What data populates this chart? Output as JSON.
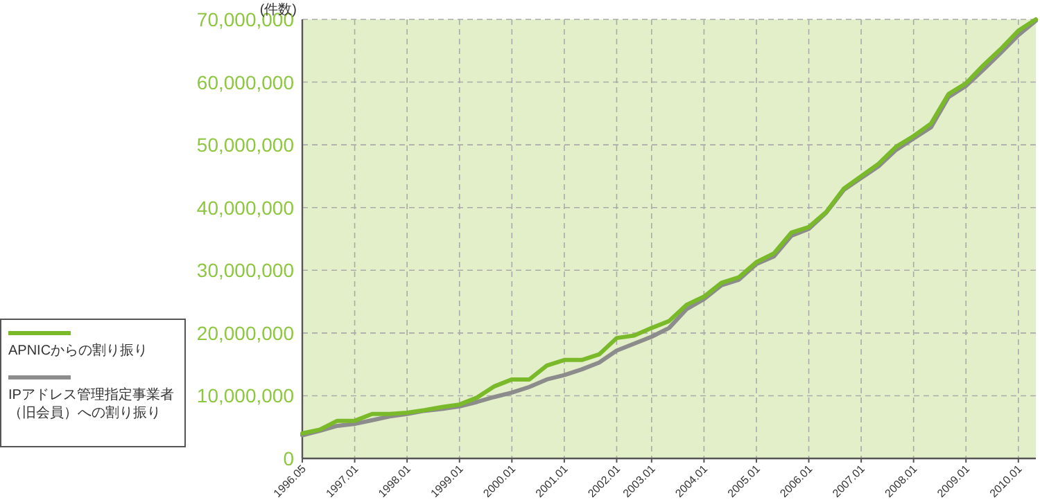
{
  "chart_data": {
    "type": "line",
    "ylabel": "(件数)",
    "categories": [
      "1996.05",
      null,
      null,
      "1997.01",
      null,
      null,
      "1998.01",
      null,
      null,
      "1999.01",
      null,
      null,
      "2000.01",
      null,
      null,
      "2001.01",
      null,
      null,
      "2002.01",
      null,
      "2003.01",
      null,
      null,
      "2004.01",
      null,
      null,
      "2005.01",
      null,
      null,
      "2006.01",
      null,
      null,
      "2007.01",
      null,
      null,
      "2008.01",
      null,
      null,
      "2009.01",
      null,
      null,
      "2010.01",
      null
    ],
    "series": [
      {
        "name": "APNICからの割り振り",
        "color": "#7ab929",
        "values": [
          4000000,
          4600000,
          6000000,
          6000000,
          7100000,
          7100000,
          7300000,
          7700000,
          8200000,
          8600000,
          9700000,
          11500000,
          12600000,
          12600000,
          14800000,
          15700000,
          15700000,
          16600000,
          19200000,
          19600000,
          20800000,
          21900000,
          24500000,
          25800000,
          28000000,
          28900000,
          31300000,
          32700000,
          36000000,
          36900000,
          39300000,
          43000000,
          45000000,
          47000000,
          49700000,
          51400000,
          53400000,
          58100000,
          59800000,
          62700000,
          65300000,
          68200000,
          70000000
        ]
      },
      {
        "name": "IPアドレス管理指定事業者（旧会員）への割り振り",
        "color": "#8c8c8c",
        "values": [
          3700000,
          4400000,
          5200000,
          5500000,
          6100000,
          6700000,
          7100000,
          7600000,
          7900000,
          8300000,
          9000000,
          9800000,
          10500000,
          11400000,
          12600000,
          13300000,
          14200000,
          15300000,
          17200000,
          18300000,
          19400000,
          20800000,
          23800000,
          25400000,
          27600000,
          28500000,
          31000000,
          32200000,
          35500000,
          36600000,
          39200000,
          42800000,
          44700000,
          46600000,
          49200000,
          51000000,
          52800000,
          57600000,
          59400000,
          62000000,
          64700000,
          67500000,
          69800000
        ]
      }
    ],
    "ylim": [
      0,
      70000000
    ],
    "yticks": [
      0,
      {
        "value": 10000000,
        "label": "10,000,000"
      },
      {
        "value": 20000000,
        "label": "20,000,000"
      },
      {
        "value": 30000000,
        "label": "30,000,000"
      },
      {
        "value": 40000000,
        "label": "40,000,000"
      },
      {
        "value": 50000000,
        "label": "50,000,000"
      },
      {
        "value": 60000000,
        "label": "60,000,000"
      },
      {
        "value": 70000000,
        "label": "70,000,000"
      }
    ],
    "grid": true,
    "legend": "bottom left"
  }
}
